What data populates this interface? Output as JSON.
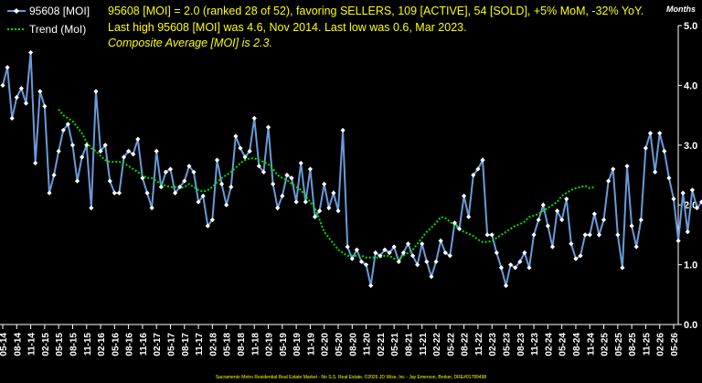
{
  "chart_data": {
    "type": "line",
    "y_unit_label": "Months",
    "ylim": [
      0,
      5
    ],
    "y_ticks": [
      "0.0",
      "1.0",
      "2.0",
      "3.0",
      "4.0",
      "5.0"
    ],
    "grid": false,
    "legend_position": "top-left",
    "annotations": [
      "95608 [MOI] = 2.0 (ranked 28 of 52), favoring SELLERS, 109 [ACTIVE], 54 [SOLD], +5% MoM, -32% YoY.",
      "Last high 95608 [MOI] was 4.6, Nov 2014. Last low was 0.6, Mar 2023.",
      "Composite Average [MOI] is 2.3."
    ],
    "footer": "Sacramento Metro Residential Real Estate Market - No S.S. Real Estate, ©2026 JD Wise, Inc - Jay Emerson, Broker, DRE#01789498",
    "x_tick_labels": [
      "05-14",
      "08-14",
      "11-14",
      "02-15",
      "05-15",
      "08-15",
      "11-15",
      "02-16",
      "05-16",
      "08-16",
      "11-16",
      "02-17",
      "05-17",
      "08-17",
      "11-17",
      "02-18",
      "05-18",
      "08-18",
      "11-18",
      "02-19",
      "05-19",
      "08-19",
      "11-19",
      "02-20",
      "05-20",
      "08-20",
      "11-20",
      "02-21",
      "05-21",
      "08-21",
      "11-21",
      "02-22",
      "05-22",
      "08-22",
      "11-22",
      "02-23",
      "05-23",
      "08-23",
      "11-23",
      "02-24",
      "05-24",
      "08-24",
      "11-24",
      "02-25",
      "05-25",
      "08-25",
      "11-25",
      "02-26",
      "05-26"
    ],
    "series": [
      {
        "name": "95608 [MOI]",
        "color": "#6a9bd8",
        "marker": "diamond",
        "start": "05-14",
        "values": [
          4.0,
          4.3,
          3.45,
          3.8,
          3.95,
          3.7,
          4.55,
          2.7,
          3.9,
          3.65,
          2.2,
          2.5,
          2.9,
          3.25,
          3.35,
          3.0,
          2.4,
          2.8,
          3.0,
          1.95,
          3.9,
          2.9,
          3.0,
          2.4,
          2.2,
          2.2,
          2.8,
          2.9,
          2.85,
          3.1,
          2.45,
          2.2,
          1.95,
          2.9,
          2.3,
          2.55,
          2.6,
          2.2,
          2.3,
          2.4,
          2.65,
          2.55,
          2.05,
          2.15,
          1.65,
          1.75,
          2.75,
          2.35,
          2.0,
          2.3,
          3.15,
          2.95,
          2.8,
          2.9,
          3.45,
          2.65,
          2.55,
          3.3,
          2.35,
          1.95,
          2.15,
          2.5,
          2.45,
          2.05,
          2.7,
          2.05,
          2.6,
          1.8,
          1.9,
          2.35,
          1.95,
          2.2,
          1.9,
          3.25,
          1.3,
          1.1,
          1.25,
          1.05,
          1.0,
          0.65,
          1.2,
          1.15,
          1.25,
          1.2,
          1.3,
          1.05,
          1.2,
          1.35,
          1.15,
          1.0,
          1.35,
          1.05,
          0.8,
          1.05,
          1.4,
          1.2,
          1.15,
          1.7,
          1.6,
          2.15,
          1.8,
          2.5,
          2.6,
          2.75,
          1.5,
          1.5,
          1.2,
          0.95,
          0.65,
          1.0,
          0.95,
          1.05,
          1.2,
          0.95,
          1.5,
          1.75,
          2.0,
          1.65,
          1.3,
          1.9,
          1.75,
          2.1,
          1.35,
          1.1,
          1.15,
          1.5,
          1.5,
          1.85,
          1.5,
          1.75,
          2.4,
          2.6,
          1.5,
          0.95,
          2.65,
          1.65,
          1.3,
          1.75,
          2.95,
          3.2,
          2.55,
          3.2,
          2.9,
          2.45,
          2.1,
          1.4,
          2.2,
          1.55,
          2.25,
          1.95,
          2.05
        ]
      },
      {
        "name": "Trend (MoI)",
        "color": "#00dd00",
        "style": "dotted",
        "start": "05-15",
        "values": [
          3.6,
          3.5,
          3.45,
          3.4,
          3.3,
          3.2,
          3.05,
          2.95,
          2.9,
          2.82,
          2.75,
          2.72,
          2.72,
          2.72,
          2.7,
          2.65,
          2.6,
          2.55,
          2.5,
          2.45,
          2.45,
          2.4,
          2.35,
          2.32,
          2.3,
          2.3,
          2.28,
          2.3,
          2.35,
          2.3,
          2.25,
          2.22,
          2.25,
          2.3,
          2.38,
          2.45,
          2.5,
          2.55,
          2.62,
          2.7,
          2.75,
          2.78,
          2.78,
          2.75,
          2.72,
          2.68,
          2.6,
          2.5,
          2.45,
          2.42,
          2.35,
          2.3,
          2.25,
          2.15,
          2.05,
          1.95,
          1.75,
          1.55,
          1.45,
          1.35,
          1.25,
          1.2,
          1.15,
          1.15,
          1.15,
          1.15,
          1.12,
          1.12,
          1.12,
          1.12,
          1.15,
          1.15,
          1.1,
          1.1,
          1.15,
          1.2,
          1.25,
          1.35,
          1.45,
          1.55,
          1.62,
          1.7,
          1.8,
          1.78,
          1.72,
          1.65,
          1.6,
          1.55,
          1.52,
          1.48,
          1.42,
          1.38,
          1.38,
          1.4,
          1.45,
          1.5,
          1.55,
          1.6,
          1.65,
          1.68,
          1.72,
          1.8,
          1.82,
          1.85,
          1.9,
          1.95,
          2.0,
          2.05,
          2.15,
          2.2,
          2.25,
          2.28,
          2.3,
          2.32,
          2.28,
          2.3
        ]
      }
    ]
  }
}
